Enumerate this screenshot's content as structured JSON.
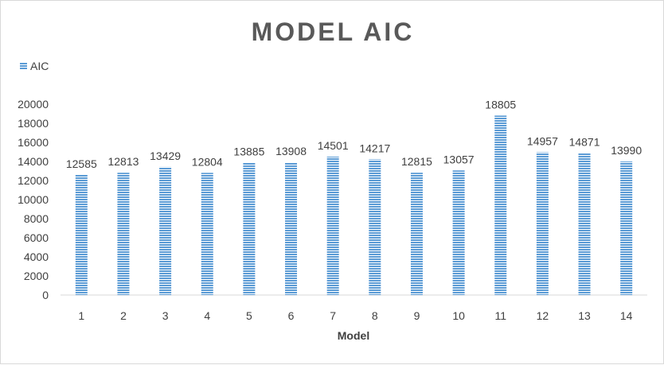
{
  "chart_data": {
    "type": "bar",
    "title": "MODEL AIC",
    "xlabel": "Model",
    "ylabel": "",
    "categories": [
      "1",
      "2",
      "3",
      "4",
      "5",
      "6",
      "7",
      "8",
      "9",
      "10",
      "11",
      "12",
      "13",
      "14"
    ],
    "series": [
      {
        "name": "AIC",
        "values": [
          12585,
          12813,
          13429,
          12804,
          13885,
          13908,
          14501,
          14217,
          12815,
          13057,
          18805,
          14957,
          14871,
          13990
        ]
      }
    ],
    "ylim": [
      0,
      20000
    ],
    "yticks": [
      "0",
      "2000",
      "4000",
      "6000",
      "8000",
      "10000",
      "12000",
      "14000",
      "16000",
      "18000",
      "20000"
    ],
    "grid": false,
    "legend_position": "top-left",
    "data_labels": [
      "12585",
      "12813",
      "13429",
      "12804",
      "13885",
      "13908",
      "14501",
      "14217",
      "12815",
      "13057",
      "18805",
      "14957",
      "14871",
      "13990"
    ],
    "colors": {
      "bar": "#5b9bd5",
      "bar_stripe": "#ffffff",
      "title": "#595959",
      "text": "#404040",
      "axis": "#d9d9d9"
    }
  }
}
